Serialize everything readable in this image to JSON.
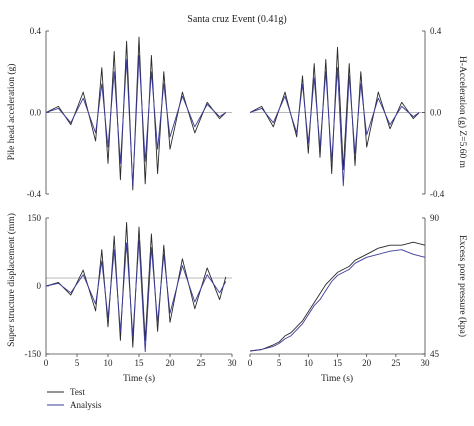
{
  "figure_title": "Santa cruz Event (0.41g)",
  "colors": {
    "test": "#2a2a2a",
    "analysis": "#3b3b9a",
    "axis": "#444444"
  },
  "legend": {
    "placement": "bottom-left",
    "items": [
      "Test",
      "Analysis"
    ]
  },
  "chart_data": [
    {
      "id": "pile-head",
      "type": "line",
      "title": "",
      "xlabel": "",
      "ylabel": "Pile head acceleration (g)",
      "ylabel_side": "left",
      "xlim": [
        0,
        30
      ],
      "ylim": [
        -0.4,
        0.4
      ],
      "yticks": [
        0.4,
        0.0,
        -0.4
      ],
      "ytick_labels": [
        "0.4",
        "0.0",
        "-0.4"
      ],
      "xticks": [],
      "series": [
        {
          "name": "Test",
          "color": "#2a2a2a",
          "x": [
            0,
            2,
            4,
            6,
            8,
            9,
            10,
            11,
            12,
            13,
            14,
            15,
            16,
            17,
            18,
            19,
            20,
            22,
            24,
            26,
            28,
            29
          ],
          "y": [
            0,
            0.03,
            -0.06,
            0.1,
            -0.14,
            0.22,
            -0.25,
            0.3,
            -0.33,
            0.35,
            -0.38,
            0.37,
            -0.35,
            0.28,
            -0.3,
            0.2,
            -0.18,
            0.1,
            -0.1,
            0.05,
            -0.03,
            0.0
          ]
        },
        {
          "name": "Analysis",
          "color": "#3b3b9a",
          "x": [
            0,
            2,
            4,
            6,
            8,
            9,
            10,
            11,
            12,
            13,
            14,
            15,
            16,
            17,
            18,
            19,
            20,
            22,
            24,
            26,
            28,
            29
          ],
          "y": [
            0,
            0.02,
            -0.05,
            0.07,
            -0.1,
            0.14,
            -0.17,
            0.2,
            -0.25,
            0.26,
            -0.36,
            0.28,
            -0.24,
            0.2,
            -0.18,
            0.14,
            -0.12,
            0.08,
            -0.07,
            0.04,
            -0.02,
            0.0
          ]
        }
      ]
    },
    {
      "id": "h-accel",
      "type": "line",
      "title": "",
      "xlabel": "",
      "ylabel": "H-Acceleration (g) Z=5.60 m",
      "ylabel_side": "right",
      "xlim": [
        0,
        30
      ],
      "ylim": [
        -0.4,
        0.4
      ],
      "yticks": [
        0.4,
        0.0,
        -0.4
      ],
      "ytick_labels": [
        "0.4",
        "0.0",
        "-0.4"
      ],
      "xticks": [],
      "series": [
        {
          "name": "Test",
          "color": "#2a2a2a",
          "x": [
            0,
            2,
            4,
            6,
            8,
            9,
            10,
            11,
            12,
            13,
            14,
            15,
            16,
            17,
            18,
            19,
            20,
            22,
            24,
            26,
            28,
            29
          ],
          "y": [
            0,
            0.03,
            -0.07,
            0.1,
            -0.12,
            0.18,
            -0.2,
            0.24,
            -0.22,
            0.26,
            -0.3,
            0.32,
            -0.28,
            0.24,
            -0.26,
            0.2,
            -0.17,
            0.1,
            -0.08,
            0.05,
            -0.03,
            0.0
          ]
        },
        {
          "name": "Analysis",
          "color": "#3b3b9a",
          "x": [
            0,
            2,
            4,
            6,
            8,
            9,
            10,
            11,
            12,
            13,
            14,
            15,
            16,
            17,
            18,
            19,
            20,
            22,
            24,
            26,
            28,
            29
          ],
          "y": [
            0,
            0.02,
            -0.05,
            0.08,
            -0.1,
            0.14,
            -0.15,
            0.17,
            -0.17,
            0.2,
            -0.24,
            0.22,
            -0.36,
            0.18,
            -0.2,
            0.14,
            -0.11,
            0.07,
            -0.06,
            0.03,
            -0.02,
            0.0
          ]
        }
      ]
    },
    {
      "id": "super-disp",
      "type": "line",
      "title": "",
      "xlabel": "Time (s)",
      "ylabel": "Super structure displacement (mm)",
      "ylabel_side": "left",
      "xlim": [
        0,
        30
      ],
      "ylim": [
        -150,
        150
      ],
      "yticks": [
        150,
        0,
        -150
      ],
      "ytick_labels": [
        "150",
        "0",
        "-150"
      ],
      "xticks": [
        0,
        5,
        10,
        15,
        20,
        25,
        30
      ],
      "series": [
        {
          "name": "Test",
          "color": "#2a2a2a",
          "x": [
            0,
            2,
            4,
            6,
            8,
            9,
            10,
            11,
            12,
            13,
            14,
            15,
            16,
            17,
            18,
            19,
            20,
            22,
            24,
            26,
            28,
            29
          ],
          "y": [
            0,
            8,
            -20,
            35,
            -55,
            80,
            -90,
            110,
            -120,
            140,
            -135,
            130,
            -120,
            115,
            -100,
            90,
            -80,
            60,
            -50,
            40,
            -30,
            20
          ]
        },
        {
          "name": "Analysis",
          "color": "#3b3b9a",
          "x": [
            0,
            2,
            4,
            6,
            8,
            9,
            10,
            11,
            12,
            13,
            14,
            15,
            16,
            17,
            18,
            19,
            20,
            22,
            24,
            26,
            28,
            29
          ],
          "y": [
            0,
            6,
            -15,
            25,
            -40,
            55,
            -70,
            80,
            -100,
            95,
            -110,
            100,
            -145,
            85,
            -80,
            70,
            -60,
            45,
            -35,
            25,
            -15,
            10
          ]
        }
      ]
    },
    {
      "id": "pore-pressure",
      "type": "line",
      "title": "",
      "xlabel": "Time (s)",
      "ylabel": "Excess pore pressure (kpa)",
      "ylabel_side": "right",
      "xlim": [
        0,
        30
      ],
      "ylim": [
        45,
        90
      ],
      "yticks": [
        90,
        45
      ],
      "ytick_labels": [
        "90",
        "45"
      ],
      "xticks": [
        0,
        5,
        10,
        15,
        20,
        25,
        30
      ],
      "series": [
        {
          "name": "Test",
          "color": "#2a2a2a",
          "x": [
            0,
            2,
            4,
            5,
            6,
            7,
            8,
            9,
            10,
            11,
            12,
            13,
            14,
            15,
            16,
            17,
            18,
            19,
            20,
            22,
            24,
            26,
            28,
            30
          ],
          "y": [
            46,
            46.5,
            48,
            49,
            51,
            52,
            54,
            56,
            59,
            62,
            65,
            68,
            70,
            72,
            73,
            74,
            76,
            77,
            78,
            80,
            81,
            81,
            82,
            81
          ]
        },
        {
          "name": "Analysis",
          "color": "#3b3b9a",
          "x": [
            0,
            2,
            4,
            5,
            6,
            7,
            8,
            9,
            10,
            11,
            12,
            13,
            14,
            15,
            16,
            17,
            18,
            19,
            20,
            22,
            24,
            26,
            28,
            30
          ],
          "y": [
            46,
            46.5,
            47.5,
            48.5,
            50,
            51,
            53,
            55,
            58,
            61,
            63,
            66,
            69,
            71,
            72,
            73,
            75,
            76,
            77,
            78,
            79,
            79.5,
            78,
            77
          ]
        }
      ]
    }
  ]
}
